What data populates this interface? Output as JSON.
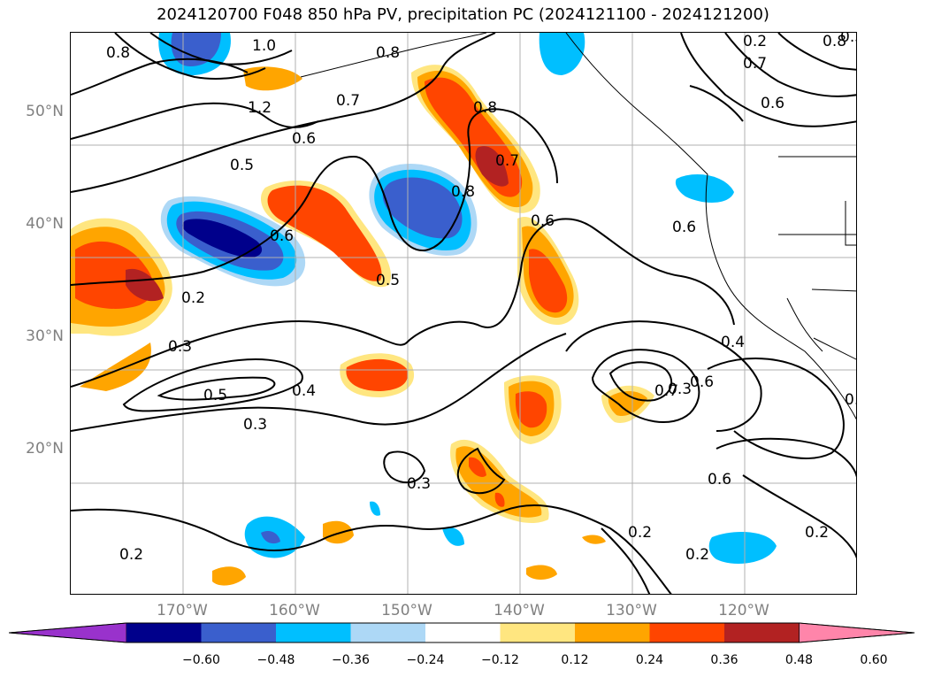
{
  "title": "2024120700 F048 850 hPa PV, precipitation PC (2024121100 - 2024121200)",
  "lat_labels": [
    "50°N",
    "40°N",
    "30°N",
    "20°N"
  ],
  "lon_labels": [
    "170°W",
    "160°W",
    "150°W",
    "140°W",
    "130°W",
    "120°W"
  ],
  "contour_labels": [
    "0.8",
    "1.0",
    "0.8",
    "1.2",
    "0.7",
    "0.6",
    "0.5",
    "0.6",
    "0.5",
    "0.8",
    "0.7",
    "0.8",
    "0.6",
    "0.6",
    "0.3",
    "0.2",
    "0.2",
    "0.3",
    "0.5",
    "0.4",
    "0.3",
    "0.3",
    "0.7",
    "0.6",
    "0.4",
    "0.6",
    "0.2",
    "0.2",
    "0.2",
    "0.2",
    "0.2",
    "0.8",
    "0.7",
    "0.6",
    "0.3"
  ],
  "colorbar": {
    "ticks": [
      "−0.60",
      "−0.48",
      "−0.36",
      "−0.24",
      "−0.12",
      "0.12",
      "0.24",
      "0.36",
      "0.48",
      "0.60"
    ],
    "colors": [
      "#9932cc",
      "#00008b",
      "#3a5fcd",
      "#00bfff",
      "#add8f6",
      "#ffffff",
      "#ffe680",
      "#ffa500",
      "#ff4500",
      "#b22222",
      "#ff85aa"
    ]
  },
  "fill_colors": {
    "blue_dark": "#00008b",
    "blue": "#3a5fcd",
    "cyan": "#00bfff",
    "light_blue": "#add8f6",
    "yellow": "#ffe680",
    "orange": "#ffa500",
    "red_orange": "#ff4500",
    "dark_red": "#b22222"
  }
}
